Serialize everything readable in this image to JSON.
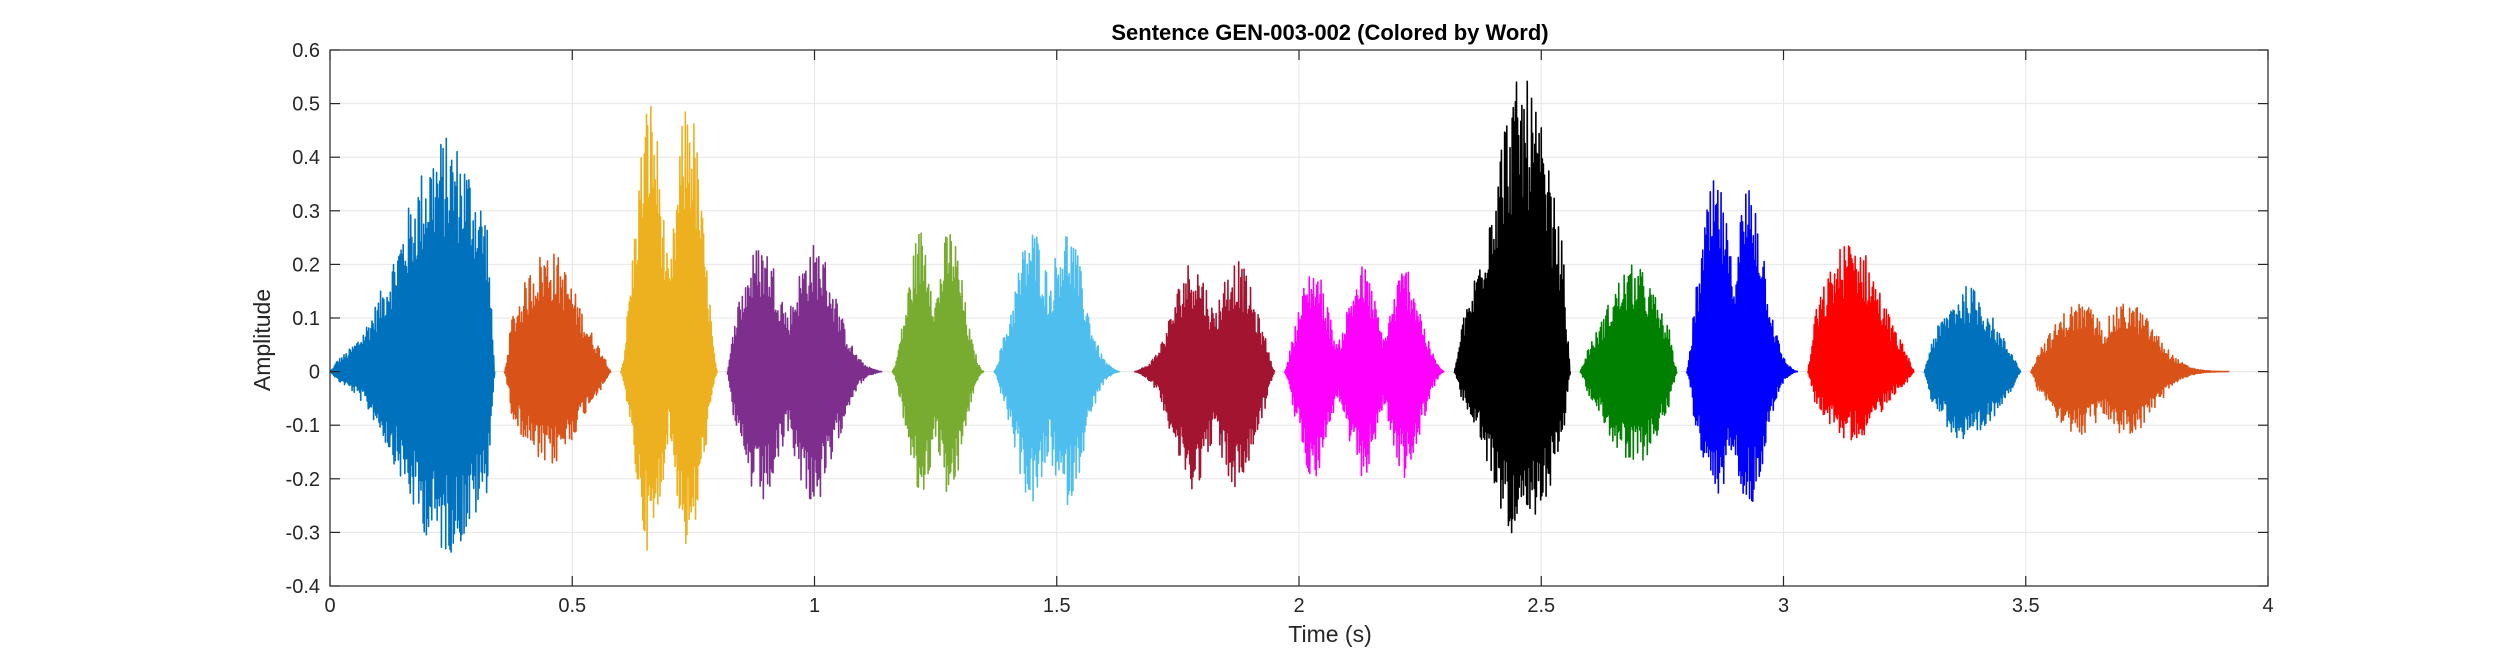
{
  "chart_data": {
    "type": "line",
    "title": "Sentence GEN-003-002 (Colored by Word)",
    "xlabel": "Time (s)",
    "ylabel": "Amplitude",
    "xlim": [
      0,
      4
    ],
    "ylim": [
      -0.4,
      0.6
    ],
    "xticks": [
      0,
      0.5,
      1,
      1.5,
      2,
      2.5,
      3,
      3.5,
      4
    ],
    "xtick_labels": [
      "0",
      "0.5",
      "1",
      "1.5",
      "2",
      "2.5",
      "3",
      "3.5",
      "4"
    ],
    "yticks": [
      -0.4,
      -0.3,
      -0.2,
      -0.1,
      0,
      0.1,
      0.2,
      0.3,
      0.4,
      0.5,
      0.6
    ],
    "ytick_labels": [
      "-0.4",
      "-0.3",
      "-0.2",
      "-0.1",
      "0",
      "0.1",
      "0.2",
      "0.3",
      "0.4",
      "0.5",
      "0.6"
    ],
    "grid": true,
    "legend": "none",
    "colors": {
      "axis": "#262626",
      "grid": "#e6e6e6"
    },
    "segments": [
      {
        "start": 0.0,
        "end": 0.34,
        "color": "#0072BD",
        "max": 0.44,
        "min": -0.34,
        "peaks": [
          0.24
        ]
      },
      {
        "start": 0.36,
        "end": 0.58,
        "color": "#D95319",
        "max": 0.23,
        "min": -0.18,
        "peaks": [
          0.45
        ]
      },
      {
        "start": 0.6,
        "end": 0.8,
        "color": "#EDB120",
        "max": 0.52,
        "min": -0.34,
        "peaks": [
          0.66,
          0.74
        ]
      },
      {
        "start": 0.82,
        "end": 1.14,
        "color": "#7E2F8E",
        "max": 0.24,
        "min": -0.25,
        "peaks": [
          0.89,
          1.0
        ]
      },
      {
        "start": 1.16,
        "end": 1.35,
        "color": "#77AC30",
        "max": 0.27,
        "min": -0.24,
        "peaks": [
          1.22,
          1.28
        ]
      },
      {
        "start": 1.37,
        "end": 1.63,
        "color": "#4DBEEE",
        "max": 0.27,
        "min": -0.25,
        "peaks": [
          1.45,
          1.52
        ]
      },
      {
        "start": 1.66,
        "end": 1.95,
        "color": "#A2142F",
        "max": 0.21,
        "min": -0.22,
        "peaks": [
          1.78,
          1.87
        ]
      },
      {
        "start": 1.97,
        "end": 2.3,
        "color": "#FF00FF",
        "max": 0.2,
        "min": -0.2,
        "peaks": [
          2.03,
          2.13,
          2.22
        ]
      },
      {
        "start": 2.32,
        "end": 2.56,
        "color": "#000000",
        "max": 0.55,
        "min": -0.32,
        "peaks": [
          2.46
        ]
      },
      {
        "start": 2.58,
        "end": 2.78,
        "color": "#008000",
        "max": 0.2,
        "min": -0.18,
        "peaks": [
          2.69
        ]
      },
      {
        "start": 2.8,
        "end": 3.03,
        "color": "#0000FF",
        "max": 0.36,
        "min": -0.25,
        "peaks": [
          2.86,
          2.93
        ]
      },
      {
        "start": 3.05,
        "end": 3.27,
        "color": "#FF0000",
        "max": 0.25,
        "min": -0.13,
        "peaks": [
          3.14
        ]
      },
      {
        "start": 3.29,
        "end": 3.49,
        "color": "#0072BD",
        "max": 0.16,
        "min": -0.14,
        "peaks": [
          3.38
        ]
      },
      {
        "start": 3.51,
        "end": 3.92,
        "color": "#D95319",
        "max": 0.13,
        "min": -0.12,
        "peaks": [
          3.61,
          3.71
        ]
      }
    ]
  }
}
